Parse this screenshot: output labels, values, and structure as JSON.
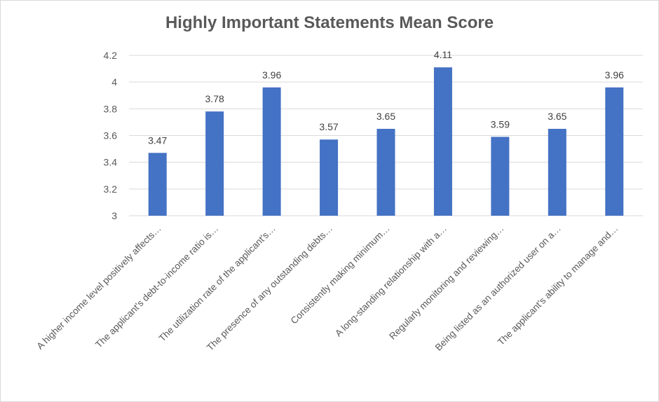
{
  "chart_data": {
    "type": "bar",
    "title": "Highly Important Statements Mean Score",
    "xlabel": "",
    "ylabel": "",
    "ylim": [
      3,
      4.2
    ],
    "y_ticks": [
      "3",
      "3.2",
      "3.4",
      "3.6",
      "3.8",
      "4",
      "4.2"
    ],
    "grid": true,
    "legend": "none",
    "bar_color": "#4472C4",
    "categories": [
      "A higher income level positively affects…",
      "The applicant's debt-to-income ratio is…",
      "The utilization rate of the applicant's…",
      "The presence of any outstanding debts…",
      "Consistently making minimum…",
      "A long-standing relationship with a…",
      "Regularly monitoring and reviewing…",
      "Being listed as an authorized user on a…",
      "The applicant's ability to manage and…"
    ],
    "values": [
      3.47,
      3.78,
      3.96,
      3.57,
      3.65,
      4.11,
      3.59,
      3.65,
      3.96
    ],
    "data_labels": [
      "3.47",
      "3.78",
      "3.96",
      "3.57",
      "3.65",
      "4.11",
      "3.59",
      "3.65",
      "3.96"
    ]
  }
}
